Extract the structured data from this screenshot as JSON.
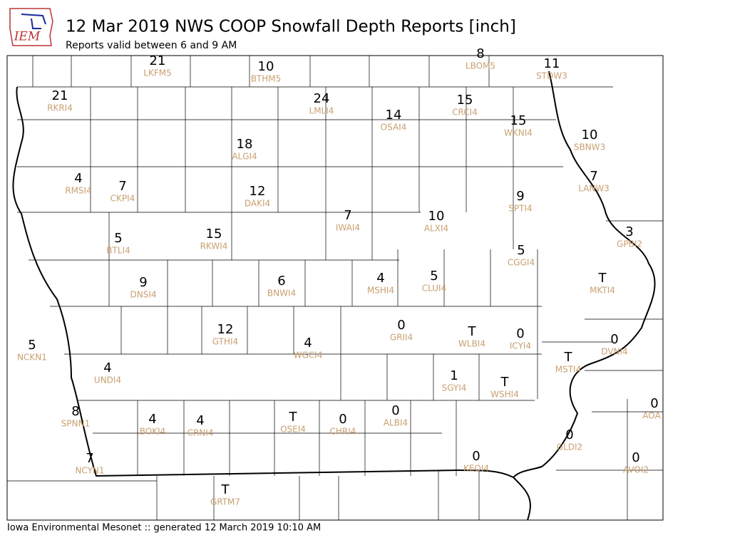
{
  "header": {
    "logo": "IEM",
    "title": "12 Mar 2019 NWS COOP Snowfall Depth Reports [inch]",
    "subtitle": "Reports valid between 6 and 9 AM"
  },
  "stations": [
    {
      "value": 21,
      "id": "LKFM5"
    },
    {
      "value": 10,
      "id": "BTHM5"
    },
    {
      "value": 8,
      "id": "LBOM5"
    },
    {
      "value": 11,
      "id": "STDW3"
    },
    {
      "value": 21,
      "id": "RKRI4"
    },
    {
      "value": 24,
      "id": "LMLI4"
    },
    {
      "value": 14,
      "id": "OSAI4"
    },
    {
      "value": 15,
      "id": "CRCI4"
    },
    {
      "value": 15,
      "id": "WKNI4"
    },
    {
      "value": 10,
      "id": "SBNW3"
    },
    {
      "value": 18,
      "id": "ALGI4"
    },
    {
      "value": 4,
      "id": "RMSI4"
    },
    {
      "value": 7,
      "id": "CKPI4"
    },
    {
      "value": 12,
      "id": "DAKI4"
    },
    {
      "value": 7,
      "id": "LANW3"
    },
    {
      "value": 9,
      "id": "SPTI4"
    },
    {
      "value": 7,
      "id": "IWAI4"
    },
    {
      "value": 10,
      "id": "ALXI4"
    },
    {
      "value": 5,
      "id": "BTLI4"
    },
    {
      "value": 15,
      "id": "RKWI4"
    },
    {
      "value": 3,
      "id": "GPBI2"
    },
    {
      "value": 5,
      "id": "CGGI4"
    },
    {
      "value": 9,
      "id": "DNSI4"
    },
    {
      "value": 6,
      "id": "BNWI4"
    },
    {
      "value": 4,
      "id": "MSHI4"
    },
    {
      "value": 5,
      "id": "CLUI4"
    },
    {
      "value": "T",
      "id": "MKTI4"
    },
    {
      "value": 0,
      "id": "GRII4"
    },
    {
      "value": "T",
      "id": "WLBI4"
    },
    {
      "value": 0,
      "id": "ICYI4"
    },
    {
      "value": 12,
      "id": "GTHI4"
    },
    {
      "value": 4,
      "id": "WGCI4"
    },
    {
      "value": 0,
      "id": "DVNI4"
    },
    {
      "value": 5,
      "id": "NCKN1"
    },
    {
      "value": "T",
      "id": "MSTI4"
    },
    {
      "value": 4,
      "id": "UNDI4"
    },
    {
      "value": 1,
      "id": "SGYI4"
    },
    {
      "value": "T",
      "id": "WSHI4"
    },
    {
      "value": 0,
      "id": "AOA"
    },
    {
      "value": 8,
      "id": "SPNN1"
    },
    {
      "value": 4,
      "id": "BOKI4"
    },
    {
      "value": 4,
      "id": "CRNI4"
    },
    {
      "value": "T",
      "id": "OSEI4"
    },
    {
      "value": 0,
      "id": "CHRI4"
    },
    {
      "value": 0,
      "id": "ALBI4"
    },
    {
      "value": 0,
      "id": "GLDI2"
    },
    {
      "value": 0,
      "id": "AVOI2"
    },
    {
      "value": 0,
      "id": "KEOI4"
    },
    {
      "value": 7,
      "id": "NCYN1"
    },
    {
      "value": "T",
      "id": "GRTM7"
    }
  ],
  "footer": "Iowa Environmental Mesonet :: generated 12 March 2019 10:10 AM"
}
